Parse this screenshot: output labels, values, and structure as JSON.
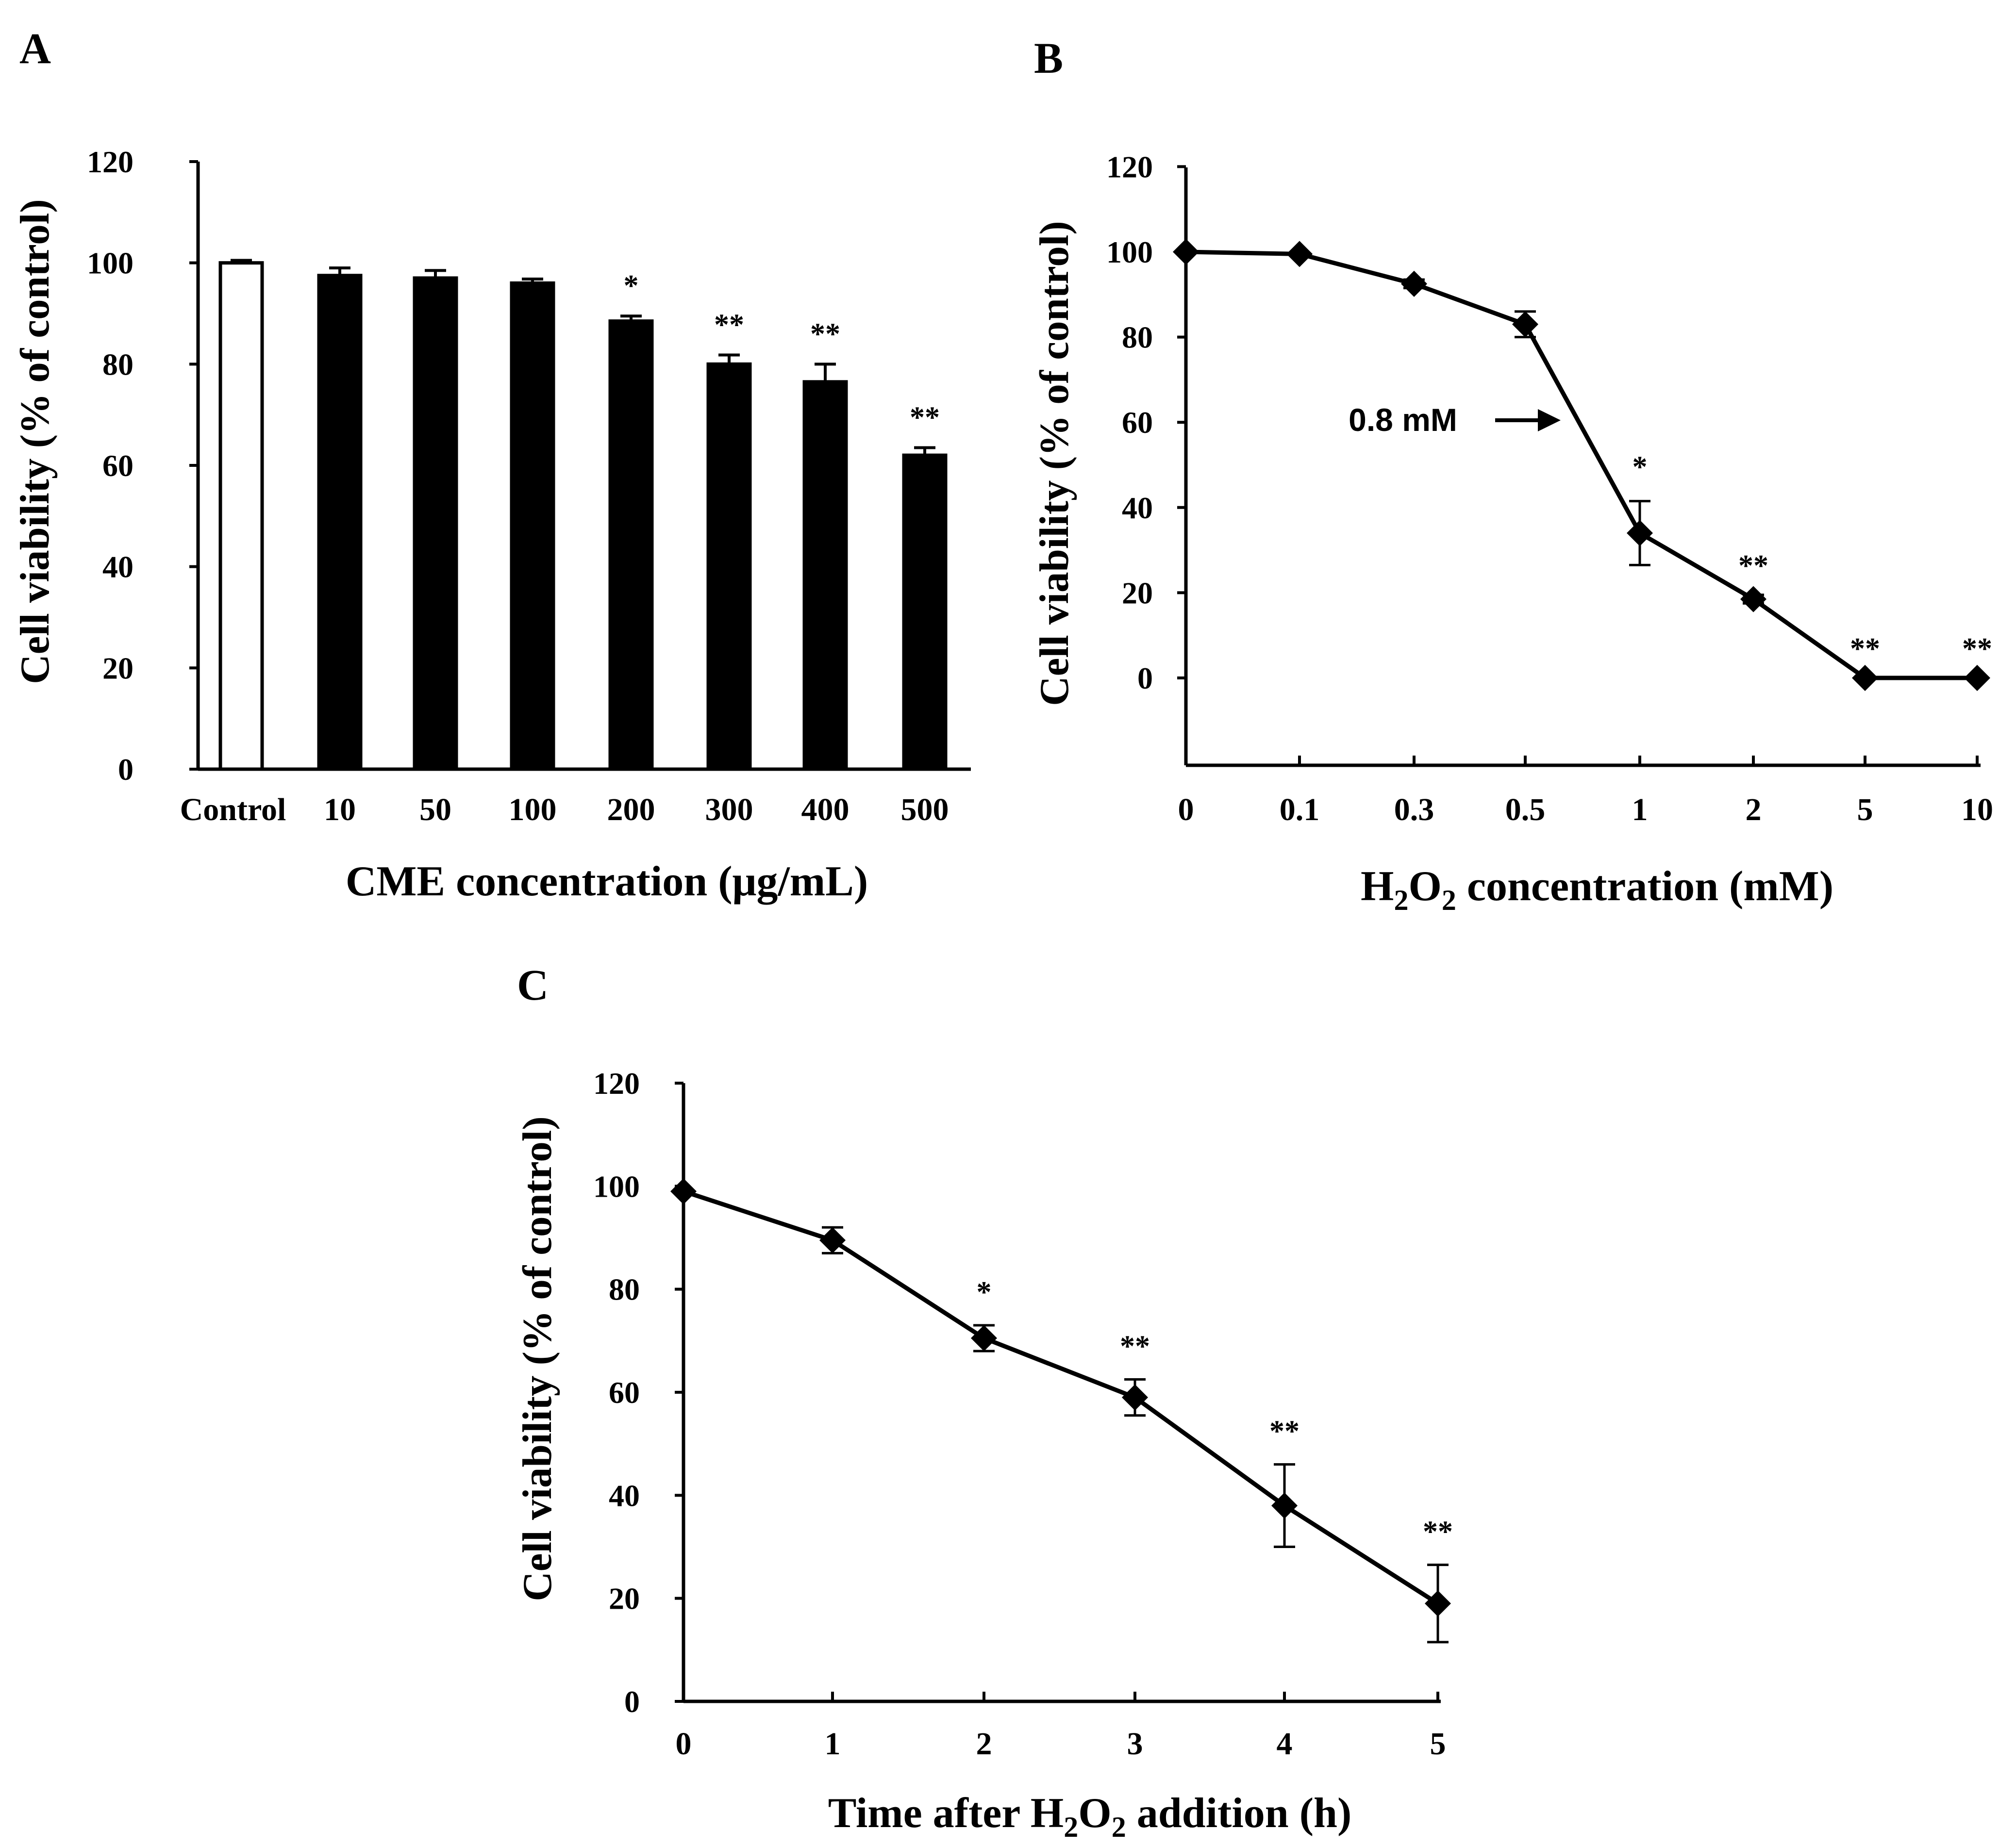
{
  "chart_data": [
    {
      "panel": "A",
      "type": "bar",
      "title": "",
      "ylabel": "Cell viability (% of control)",
      "xlabel": "CME concentration (μg/mL)",
      "ylim": [
        0,
        120
      ],
      "yticks": [
        "0",
        "20",
        "40",
        "60",
        "80",
        "100",
        "120"
      ],
      "categories": [
        "Control",
        "10",
        "50",
        "100",
        "200",
        "300",
        "400",
        "500"
      ],
      "values": [
        100,
        97.5,
        97,
        96,
        88.5,
        80,
        76.5,
        62
      ],
      "errors": [
        0.5,
        1.5,
        1.5,
        0.8,
        1.0,
        1.8,
        3.5,
        1.5
      ],
      "bar_fills": [
        "white",
        "black",
        "black",
        "black",
        "black",
        "black",
        "black",
        "black"
      ],
      "significance": [
        "",
        "",
        "",
        "",
        "*",
        "**",
        "**",
        "**"
      ],
      "grid": false
    },
    {
      "panel": "B",
      "type": "line",
      "title": "",
      "ylabel": "Cell viability (% of control)",
      "xlabel_main": "H",
      "xlabel_sub1": "2",
      "xlabel_mid": "O",
      "xlabel_sub2": "2",
      "xlabel_rest": " concentration (mM)",
      "ylim": [
        -20,
        120
      ],
      "yticks": [
        "0",
        "20",
        "40",
        "60",
        "80",
        "100",
        "120"
      ],
      "x": [
        "0",
        "0.1",
        "0.3",
        "0.5",
        "1",
        "2",
        "5",
        "10"
      ],
      "values": [
        100,
        99.5,
        92.5,
        83,
        34,
        18.5,
        0,
        0
      ],
      "errors": [
        0,
        0.5,
        1,
        3,
        7.5,
        1,
        0,
        0
      ],
      "significance": [
        "",
        "",
        "",
        "",
        "*",
        "**",
        "**",
        "**"
      ],
      "annotation": {
        "text": "0.8 mM",
        "points_to": "0.8"
      },
      "marker": "diamond",
      "grid": false
    },
    {
      "panel": "C",
      "type": "line",
      "title": "",
      "ylabel": "Cell viability (% of control)",
      "xlabel_main": "Time after H",
      "xlabel_sub1": "2",
      "xlabel_mid": "O",
      "xlabel_sub2": "2",
      "xlabel_rest": " addition (h)",
      "ylim": [
        0,
        120
      ],
      "yticks": [
        "0",
        "20",
        "40",
        "60",
        "80",
        "100",
        "120"
      ],
      "x": [
        "0",
        "1",
        "2",
        "3",
        "4",
        "5"
      ],
      "values": [
        99,
        89.5,
        70.5,
        59,
        38,
        19
      ],
      "errors": [
        0,
        2.5,
        2.5,
        3.5,
        8,
        7.5
      ],
      "significance": [
        "",
        "",
        "*",
        "**",
        "**",
        "**"
      ],
      "marker": "diamond",
      "grid": false
    }
  ],
  "panel_labels": [
    "A",
    "B",
    "C"
  ]
}
